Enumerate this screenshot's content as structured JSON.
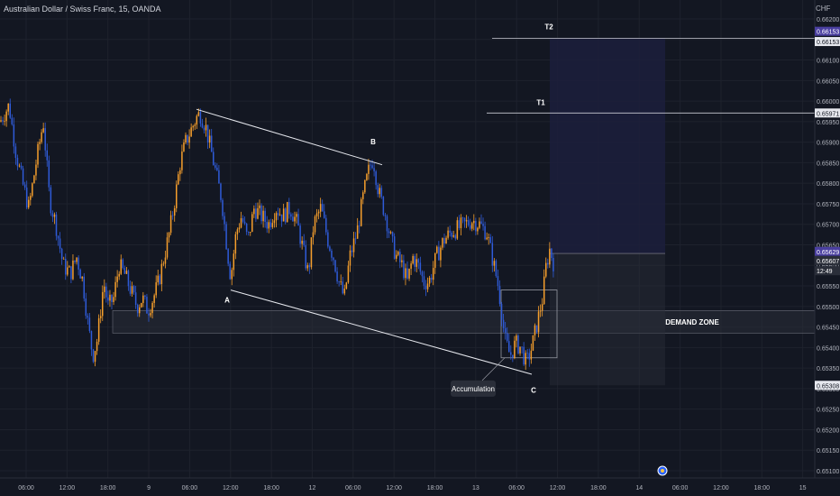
{
  "header": {
    "title": "Australian Dollar / Swiss Franc, 15, OANDA",
    "currency": "CHF"
  },
  "colors": {
    "background": "#131722",
    "up": "#f59e2c",
    "down": "#2f5bd8",
    "grid": "#1e222d",
    "zone": "#2a2e39",
    "target_box": "#1c1e3c",
    "line": "#c9ccd4",
    "price_badge": "#4a3fa0",
    "current_badge": "#2a2e39"
  },
  "chart_data": {
    "type": "candlestick",
    "ylim": [
      0.651,
      0.662
    ],
    "y_ticks": [
      "0.66200",
      "0.66150",
      "0.66100",
      "0.66050",
      "0.66000",
      "0.65950",
      "0.65900",
      "0.65850",
      "0.65800",
      "0.65750",
      "0.65700",
      "0.65650",
      "0.65600",
      "0.65550",
      "0.65500",
      "0.65450",
      "0.65400",
      "0.65350",
      "0.65300",
      "0.65250",
      "0.65200",
      "0.65150",
      "0.65100"
    ],
    "x_ticks": [
      "06:00",
      "12:00",
      "18:00",
      "9",
      "06:00",
      "12:00",
      "18:00",
      "12",
      "06:00",
      "12:00",
      "18:00",
      "13",
      "06:00",
      "12:00",
      "18:00",
      "14",
      "06:00",
      "12:00",
      "18:00",
      "15"
    ],
    "price_path": [
      [
        0,
        0.6595
      ],
      [
        10,
        0.6599
      ],
      [
        18,
        0.6587
      ],
      [
        25,
        0.658
      ],
      [
        32,
        0.6574
      ],
      [
        40,
        0.6585
      ],
      [
        48,
        0.6595
      ],
      [
        55,
        0.6576
      ],
      [
        62,
        0.657
      ],
      [
        70,
        0.656
      ],
      [
        78,
        0.6558
      ],
      [
        85,
        0.6562
      ],
      [
        92,
        0.6556
      ],
      [
        98,
        0.6545
      ],
      [
        103,
        0.6538
      ],
      [
        108,
        0.6542
      ],
      [
        115,
        0.6556
      ],
      [
        120,
        0.655
      ],
      [
        126,
        0.6552
      ],
      [
        132,
        0.656
      ],
      [
        138,
        0.6558
      ],
      [
        145,
        0.6554
      ],
      [
        152,
        0.655
      ],
      [
        158,
        0.6552
      ],
      [
        164,
        0.6549
      ],
      [
        170,
        0.6552
      ],
      [
        176,
        0.6556
      ],
      [
        182,
        0.6562
      ],
      [
        188,
        0.6568
      ],
      [
        194,
        0.6576
      ],
      [
        200,
        0.6585
      ],
      [
        206,
        0.659
      ],
      [
        212,
        0.6593
      ],
      [
        218,
        0.6596
      ],
      [
        222,
        0.6597
      ],
      [
        228,
        0.6594
      ],
      [
        234,
        0.6588
      ],
      [
        240,
        0.6582
      ],
      [
        246,
        0.6576
      ],
      [
        252,
        0.6564
      ],
      [
        256,
        0.6557
      ],
      [
        262,
        0.6568
      ],
      [
        268,
        0.6572
      ],
      [
        275,
        0.6566
      ],
      [
        282,
        0.6574
      ],
      [
        290,
        0.6572
      ],
      [
        298,
        0.657
      ],
      [
        306,
        0.6574
      ],
      [
        314,
        0.6572
      ],
      [
        322,
        0.6574
      ],
      [
        330,
        0.657
      ],
      [
        336,
        0.6564
      ],
      [
        342,
        0.6558
      ],
      [
        348,
        0.657
      ],
      [
        356,
        0.6574
      ],
      [
        364,
        0.6566
      ],
      [
        370,
        0.6562
      ],
      [
        376,
        0.6556
      ],
      [
        382,
        0.6552
      ],
      [
        388,
        0.6562
      ],
      [
        396,
        0.6568
      ],
      [
        404,
        0.6578
      ],
      [
        410,
        0.6584
      ],
      [
        414,
        0.6586
      ],
      [
        420,
        0.6578
      ],
      [
        428,
        0.6572
      ],
      [
        434,
        0.6566
      ],
      [
        440,
        0.6562
      ],
      [
        446,
        0.656
      ],
      [
        452,
        0.6556
      ],
      [
        458,
        0.6562
      ],
      [
        464,
        0.656
      ],
      [
        470,
        0.6556
      ],
      [
        476,
        0.6556
      ],
      [
        484,
        0.6562
      ],
      [
        492,
        0.6566
      ],
      [
        500,
        0.6568
      ],
      [
        508,
        0.6569
      ],
      [
        516,
        0.657
      ],
      [
        524,
        0.6571
      ],
      [
        532,
        0.657
      ],
      [
        540,
        0.6568
      ],
      [
        546,
        0.6562
      ],
      [
        552,
        0.6556
      ],
      [
        556,
        0.655
      ],
      [
        560,
        0.6542
      ],
      [
        566,
        0.6538
      ],
      [
        572,
        0.6541
      ],
      [
        578,
        0.654
      ],
      [
        584,
        0.6536
      ],
      [
        590,
        0.654
      ],
      [
        596,
        0.6546
      ],
      [
        602,
        0.6552
      ],
      [
        606,
        0.656
      ],
      [
        610,
        0.6564
      ],
      [
        614,
        0.65607
      ]
    ],
    "last_price": 0.65607,
    "countdown": "12:49",
    "levels": [
      {
        "name": "T2",
        "value": 0.66153,
        "x_start": 546,
        "x_end": 904
      },
      {
        "name": "T1",
        "value": 0.65971,
        "x_start": 540,
        "x_end": 904
      },
      {
        "name": "entry",
        "value": 0.65629,
        "x_start": 610,
        "x_end": 738
      }
    ],
    "price_badges": [
      {
        "label": "0.66153",
        "value": 0.6617,
        "style": "target"
      },
      {
        "label": "0.66153",
        "value": 0.66145,
        "style": "gray"
      },
      {
        "label": "0.65971",
        "value": 0.65971,
        "style": "gray"
      },
      {
        "label": "0.65629",
        "value": 0.65634,
        "style": "target"
      },
      {
        "label": "0.65607",
        "value": 0.65612,
        "style": "current"
      },
      {
        "label": "12:49",
        "value": 0.65587,
        "style": "current"
      },
      {
        "label": "0.65308",
        "value": 0.65308,
        "style": "gray"
      }
    ],
    "demand_zone": {
      "label": "DEMAND ZONE",
      "top": 0.6549,
      "bottom": 0.65435,
      "x_start": 125,
      "x_end": 904
    },
    "target_box": {
      "top": 0.66153,
      "bottom": 0.65629,
      "x_start": 610,
      "x_end": 738
    },
    "stop_box": {
      "top": 0.65629,
      "bottom": 0.65308,
      "x_start": 610,
      "x_end": 738
    },
    "accumulation_box": {
      "top": 0.6554,
      "bottom": 0.65375,
      "x_start": 556,
      "x_end": 618
    },
    "trend_lines": [
      {
        "from": [
          218,
          0.6598
        ],
        "to": [
          424,
          0.65845
        ]
      },
      {
        "from": [
          256,
          0.6554
        ],
        "to": [
          590,
          0.65335
        ]
      }
    ],
    "annotations": [
      {
        "text": "A",
        "x": 252,
        "value": 0.6551
      },
      {
        "text": "B",
        "x": 414,
        "value": 0.65895
      },
      {
        "text": "C",
        "x": 592,
        "value": 0.6529
      },
      {
        "text": "T1",
        "x": 600,
        "value": 0.6599
      },
      {
        "text": "T2",
        "x": 609,
        "value": 0.66175
      },
      {
        "text": "Accumulation",
        "x": 525,
        "value": 0.653
      }
    ]
  }
}
